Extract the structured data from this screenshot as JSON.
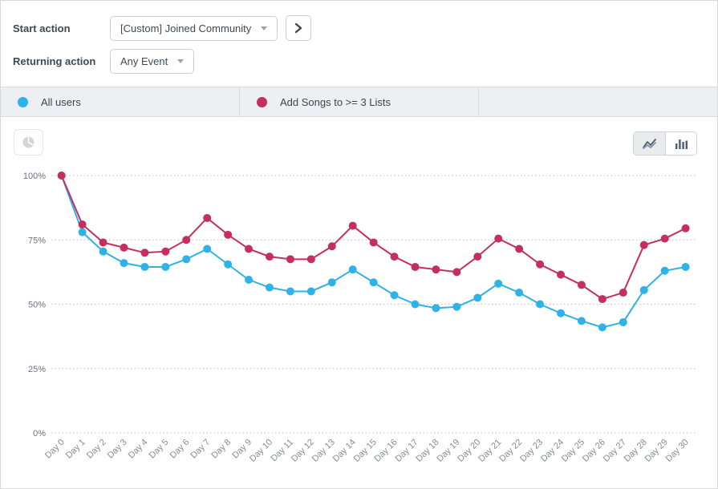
{
  "controls": {
    "start_action": {
      "label": "Start action",
      "value": "[Custom] Joined Community"
    },
    "returning_action": {
      "label": "Returning action",
      "value": "Any Event"
    }
  },
  "toolbar": {
    "chart_type_options": [
      "line",
      "bar"
    ],
    "active_chart_type": "line"
  },
  "chart_data": {
    "type": "line",
    "title": "",
    "xlabel": "",
    "ylabel": "",
    "ylim": [
      0,
      100
    ],
    "yticks": [
      100,
      75,
      50,
      25,
      0
    ],
    "ytick_suffix": "%",
    "grid": "horizontal-dotted",
    "legend_position": "top-bar",
    "categories": [
      "Day 0",
      "Day 1",
      "Day 2",
      "Day 3",
      "Day 4",
      "Day 5",
      "Day 6",
      "Day 7",
      "Day 8",
      "Day 9",
      "Day 10",
      "Day 11",
      "Day 12",
      "Day 13",
      "Day 14",
      "Day 15",
      "Day 16",
      "Day 17",
      "Day 18",
      "Day 19",
      "Day 20",
      "Day 21",
      "Day 22",
      "Day 23",
      "Day 24",
      "Day 25",
      "Day 26",
      "Day 27",
      "Day 28",
      "Day 29",
      "Day 30"
    ],
    "series": [
      {
        "name": "All users",
        "color": "#2fb2e8",
        "values": [
          100,
          78,
          70.5,
          66,
          64.5,
          64.5,
          67.5,
          71.5,
          65.5,
          59.5,
          56.5,
          55,
          55,
          58.5,
          63.5,
          58.5,
          53.5,
          50,
          48.5,
          49,
          52.5,
          58,
          54.5,
          50,
          46.5,
          43.5,
          41,
          43,
          55.5,
          63,
          64.5
        ]
      },
      {
        "name": "Add Songs to >= 3 Lists",
        "color": "#c42f5e",
        "values": [
          100,
          81,
          74,
          72,
          70,
          70.5,
          75,
          83.5,
          77,
          71.5,
          68.5,
          67.5,
          67.5,
          72.5,
          80.5,
          74,
          68.5,
          64.5,
          63.5,
          62.5,
          68.5,
          75.5,
          71.5,
          65.5,
          61.5,
          57.5,
          52,
          54.5,
          73,
          75.5,
          79.5
        ]
      }
    ]
  }
}
